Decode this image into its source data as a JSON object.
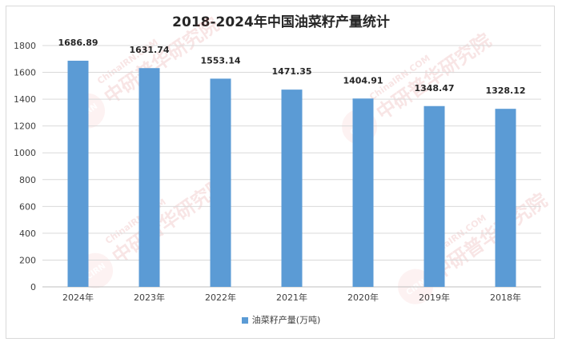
{
  "chart_data": {
    "type": "bar",
    "title": "2018-2024年中国油菜籽产量统计",
    "categories": [
      "2024年",
      "2023年",
      "2022年",
      "2021年",
      "2020年",
      "2019年",
      "2018年"
    ],
    "series": [
      {
        "name": "油菜籽产量(万吨)",
        "values": [
          1686.89,
          1631.74,
          1553.14,
          1471.35,
          1404.91,
          1348.47,
          1328.12
        ]
      }
    ],
    "data_labels": [
      "1686.89",
      "1631.74",
      "1553.14",
      "1471.35",
      "1404.91",
      "1348.47",
      "1328.12"
    ],
    "yticks": [
      0,
      200,
      400,
      600,
      800,
      1000,
      1200,
      1400,
      1600,
      1800
    ],
    "ylim": [
      0,
      1800
    ],
    "grid": true,
    "legend": "bottom",
    "bar_color": "#5b9bd5"
  },
  "watermark": {
    "text_cn": "中研普华研究院",
    "text_en": "ChinaIRN.COM",
    "logo": "CIRN"
  }
}
